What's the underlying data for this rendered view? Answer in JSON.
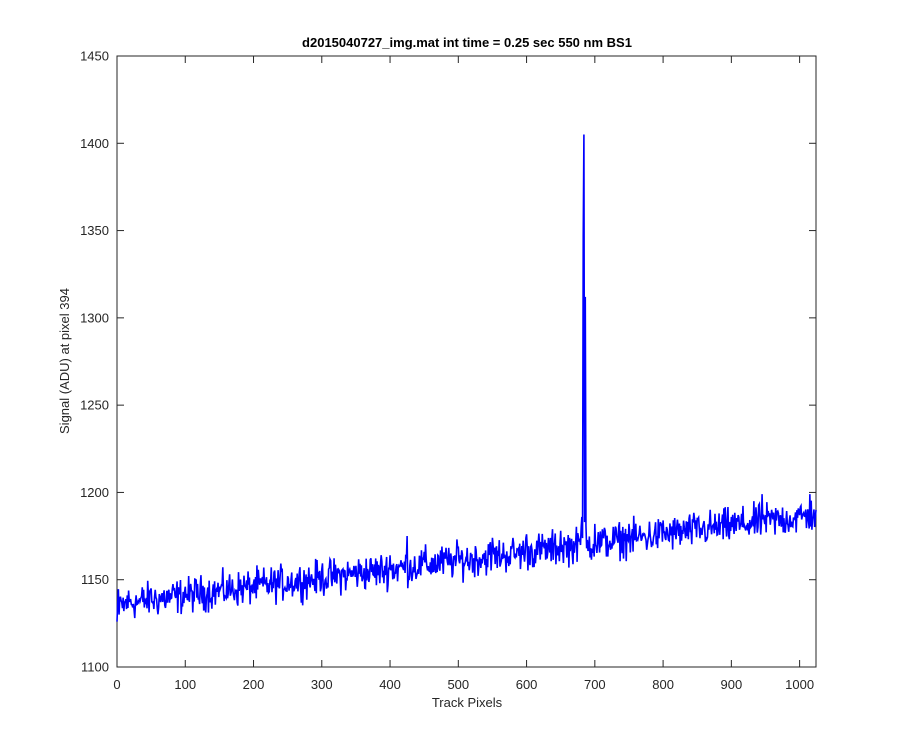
{
  "chart_data": {
    "type": "line",
    "title": "d2015040727_img.mat int time = 0.25 sec  550 nm BS1",
    "xlabel": "Track Pixels",
    "ylabel": "Signal (ADU) at pixel 394",
    "xlim": [
      0,
      1024
    ],
    "ylim": [
      1100,
      1450
    ],
    "xticks": [
      0,
      100,
      200,
      300,
      400,
      500,
      600,
      700,
      800,
      900,
      1000
    ],
    "yticks": [
      1100,
      1150,
      1200,
      1250,
      1300,
      1350,
      1400,
      1450
    ],
    "grid": false,
    "series": [
      {
        "color": "#0000ff",
        "trend": {
          "x_start": 0,
          "y_start": 1136,
          "x_end": 1024,
          "y_end": 1187
        },
        "noise_amplitude": 5,
        "points": [
          [
            0,
            1126
          ],
          [
            3,
            1130
          ],
          [
            6,
            1138
          ],
          [
            10,
            1132
          ],
          [
            15,
            1141
          ],
          [
            30,
            1136
          ],
          [
            50,
            1145
          ],
          [
            100,
            1146
          ],
          [
            150,
            1146
          ],
          [
            200,
            1148
          ],
          [
            250,
            1152
          ],
          [
            300,
            1156
          ],
          [
            350,
            1158
          ],
          [
            400,
            1164
          ],
          [
            425,
            1175
          ],
          [
            450,
            1166
          ],
          [
            500,
            1169
          ],
          [
            550,
            1174
          ],
          [
            600,
            1176
          ],
          [
            650,
            1178
          ],
          [
            680,
            1180
          ],
          [
            681,
            1186
          ],
          [
            683,
            1347
          ],
          [
            684,
            1405
          ],
          [
            685,
            1183
          ],
          [
            686,
            1312
          ],
          [
            687,
            1181
          ],
          [
            688,
            1168
          ],
          [
            700,
            1182
          ],
          [
            750,
            1182
          ],
          [
            800,
            1184
          ],
          [
            850,
            1185
          ],
          [
            900,
            1186
          ],
          [
            945,
            1199
          ],
          [
            950,
            1187
          ],
          [
            1000,
            1187
          ],
          [
            1015,
            1199
          ],
          [
            1020,
            1186
          ],
          [
            1024,
            1190
          ]
        ]
      }
    ]
  }
}
